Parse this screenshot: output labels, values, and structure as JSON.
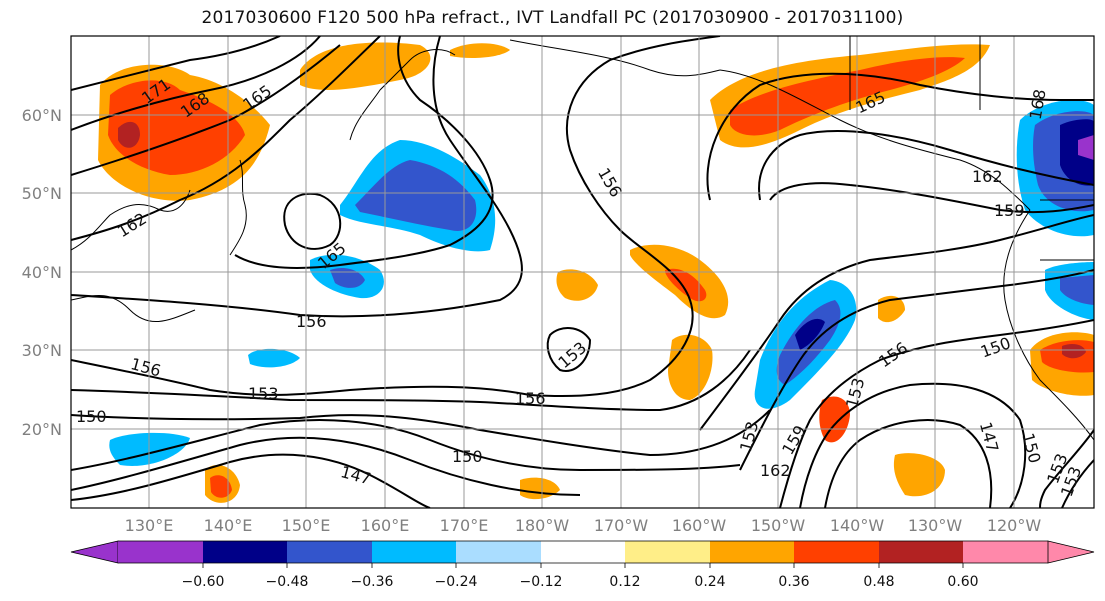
{
  "title": "2017030600 F120 500 hPa refract., IVT Landfall PC (2017030900 - 2017031100)",
  "lat_labels": [
    "60°N",
    "50°N",
    "40°N",
    "30°N",
    "20°N"
  ],
  "lon_labels": [
    "130°E",
    "140°E",
    "150°E",
    "160°E",
    "170°E",
    "180°W",
    "170°W",
    "160°W",
    "150°W",
    "140°W",
    "130°W",
    "120°W"
  ],
  "colorbar": {
    "colors": [
      "#9933cc",
      "#000088",
      "#3355cc",
      "#00bbff",
      "#aaddff",
      "#ffffff",
      "#ffee88",
      "#ffa500",
      "#ff4000",
      "#b22222",
      "#ff88aa"
    ],
    "tick_labels": [
      "−0.60",
      "−0.48",
      "−0.36",
      "−0.24",
      "−0.12",
      "0.12",
      "0.24",
      "0.36",
      "0.48",
      "0.60"
    ]
  },
  "contour_labels": [
    "171",
    "168",
    "165",
    "162",
    "165",
    "156",
    "165",
    "162",
    "159",
    "168",
    "156",
    "153",
    "156",
    "150",
    "153",
    "156",
    "150",
    "147",
    "153",
    "153",
    "159",
    "162",
    "156",
    "150",
    "147",
    "150",
    "153",
    "153"
  ],
  "colors": {
    "grid": "#999999",
    "contour": "#000000",
    "coast": "#000000"
  }
}
